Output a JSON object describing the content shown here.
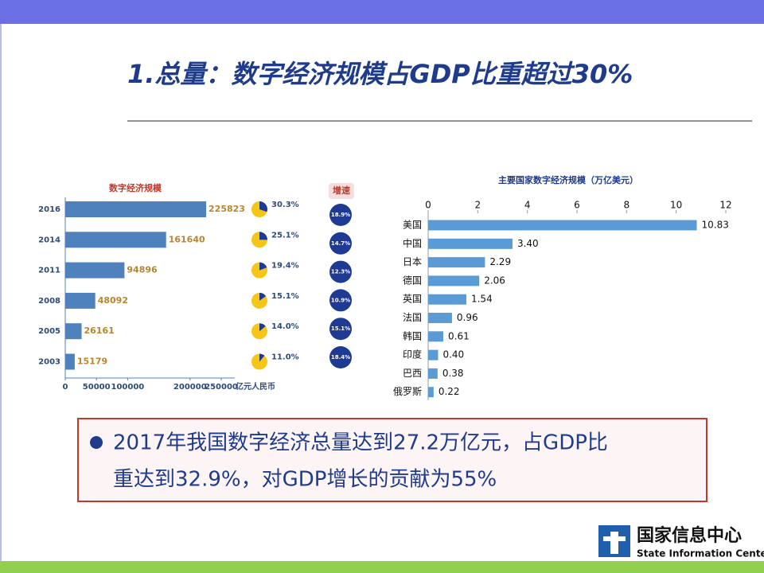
{
  "slide": {
    "title": "1.总量：数字经济规模占GDP比重超过30%",
    "callout": [
      "2017年我国数字经济总量达到27.2万亿元，占GDP比",
      "重达到32.9%，对GDP增长的贡献为55%"
    ],
    "logo": {
      "name_cn": "国家信息中心",
      "name_en": "State Information Center"
    }
  },
  "chart_data": [
    {
      "type": "bar",
      "orientation": "horizontal",
      "title": "数字经济规模",
      "categories": [
        "2016",
        "2014",
        "2011",
        "2008",
        "2005",
        "2003"
      ],
      "values": [
        225823,
        161640,
        94896,
        48092,
        26161,
        15179
      ],
      "color": "#4f81bd",
      "value_label_color": "#b8862e",
      "xlim": [
        0,
        250000
      ],
      "xticks": [
        0,
        50000,
        100000,
        200000,
        250000
      ],
      "x_label": "亿元人民币",
      "share": {
        "values": [
          30.3,
          25.1,
          19.4,
          15.1,
          14.0,
          11.0
        ],
        "value_labels": [
          "30.3%",
          "25.1%",
          "19.4%",
          "15.1%",
          "14.0%",
          "11.0%"
        ],
        "colors": [
          "#f5c518",
          "#1f3a93"
        ]
      },
      "growth": {
        "title": "增速",
        "values": [
          18.9,
          14.7,
          12.3,
          10.9,
          15.1,
          18.4
        ],
        "value_labels": [
          "18.9%",
          "14.7%",
          "12.3%",
          "10.9%",
          "15.1%",
          "18.4%"
        ],
        "color": "#1f3a93"
      }
    },
    {
      "type": "bar",
      "orientation": "horizontal",
      "title": "主要国家数字经济规模（万亿美元）",
      "categories": [
        "美国",
        "中国",
        "日本",
        "德国",
        "英国",
        "法国",
        "韩国",
        "印度",
        "巴西",
        "俄罗斯"
      ],
      "values": [
        10.83,
        3.4,
        2.29,
        2.06,
        1.54,
        0.96,
        0.61,
        0.4,
        0.38,
        0.22
      ],
      "value_labels": [
        "10.83",
        "3.40",
        "2.29",
        "2.06",
        "1.54",
        "0.96",
        "0.61",
        "0.40",
        "0.38",
        "0.22"
      ],
      "color": "#5b9bd5",
      "xlim": [
        0,
        12
      ],
      "xticks": [
        0,
        2,
        4,
        6,
        8,
        10,
        12
      ]
    }
  ]
}
